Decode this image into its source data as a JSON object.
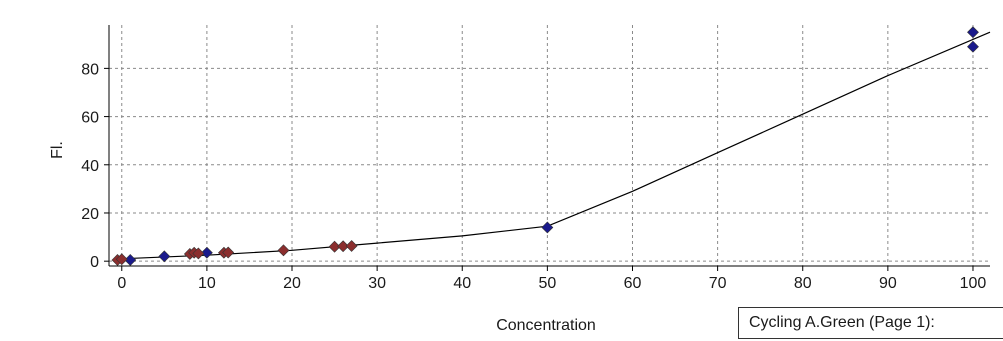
{
  "chart_data": {
    "type": "scatter",
    "xlabel": "Concentration",
    "ylabel": "Fl.",
    "xlim": [
      -1.5,
      102
    ],
    "ylim": [
      -2,
      98
    ],
    "x_ticks": [
      0,
      10,
      20,
      30,
      40,
      50,
      60,
      70,
      80,
      90,
      100
    ],
    "y_ticks": [
      0,
      20,
      40,
      60,
      80
    ],
    "grid": true,
    "legend": "Cycling A.Green (Page 1):",
    "series": [
      {
        "color": "#1a1a8c",
        "marker": "diamond",
        "points": [
          {
            "x": 1,
            "y": 0.5
          },
          {
            "x": 5,
            "y": 2
          },
          {
            "x": 10,
            "y": 3.5
          },
          {
            "x": 50,
            "y": 14
          },
          {
            "x": 100,
            "y": 95
          },
          {
            "x": 100,
            "y": 89
          }
        ]
      },
      {
        "color": "#8b2e2e",
        "marker": "diamond",
        "points": [
          {
            "x": -0.5,
            "y": 0.5
          },
          {
            "x": 0,
            "y": 0.8
          },
          {
            "x": 8,
            "y": 3
          },
          {
            "x": 8.5,
            "y": 3.5
          },
          {
            "x": 9,
            "y": 3.2
          },
          {
            "x": 12,
            "y": 3.5
          },
          {
            "x": 12.5,
            "y": 3.6
          },
          {
            "x": 19,
            "y": 4.5
          },
          {
            "x": 25,
            "y": 6
          },
          {
            "x": 26,
            "y": 6.2
          },
          {
            "x": 27,
            "y": 6.3
          }
        ]
      }
    ],
    "fit_line": {
      "color": "#000000",
      "points": [
        {
          "x": 0,
          "y": 1
        },
        {
          "x": 10,
          "y": 2.5
        },
        {
          "x": 20,
          "y": 4.5
        },
        {
          "x": 30,
          "y": 7.5
        },
        {
          "x": 40,
          "y": 10.5
        },
        {
          "x": 50,
          "y": 14.5
        },
        {
          "x": 60,
          "y": 29
        },
        {
          "x": 70,
          "y": 45
        },
        {
          "x": 80,
          "y": 61
        },
        {
          "x": 90,
          "y": 77
        },
        {
          "x": 102,
          "y": 95
        }
      ]
    }
  }
}
